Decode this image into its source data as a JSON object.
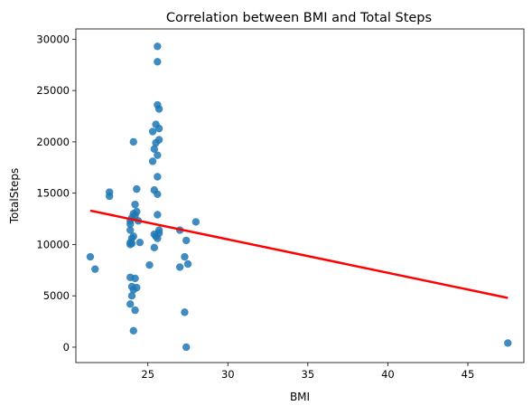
{
  "chart_data": {
    "type": "scatter",
    "title": "Correlation between BMI and Total Steps",
    "xlabel": "BMI",
    "ylabel": "TotalSteps",
    "xlim": [
      20.5,
      48.5
    ],
    "ylim": [
      -1500,
      31000
    ],
    "xticks": [
      25,
      30,
      35,
      40,
      45
    ],
    "yticks": [
      0,
      5000,
      10000,
      15000,
      20000,
      25000,
      30000
    ],
    "grid": false,
    "point_color": "#1f77b4",
    "line_color": "#ff0000",
    "points": [
      {
        "x": 21.4,
        "y": 8800
      },
      {
        "x": 21.7,
        "y": 7600
      },
      {
        "x": 22.6,
        "y": 15100
      },
      {
        "x": 22.6,
        "y": 14700
      },
      {
        "x": 23.9,
        "y": 12300
      },
      {
        "x": 23.9,
        "y": 12000
      },
      {
        "x": 23.9,
        "y": 11400
      },
      {
        "x": 23.9,
        "y": 10200
      },
      {
        "x": 23.9,
        "y": 10000
      },
      {
        "x": 23.9,
        "y": 6800
      },
      {
        "x": 23.9,
        "y": 4200
      },
      {
        "x": 24.0,
        "y": 12600
      },
      {
        "x": 24.0,
        "y": 10600
      },
      {
        "x": 24.0,
        "y": 10100
      },
      {
        "x": 24.0,
        "y": 5900
      },
      {
        "x": 24.0,
        "y": 5000
      },
      {
        "x": 24.1,
        "y": 20000
      },
      {
        "x": 24.1,
        "y": 13000
      },
      {
        "x": 24.1,
        "y": 10800
      },
      {
        "x": 24.1,
        "y": 5600
      },
      {
        "x": 24.1,
        "y": 1600
      },
      {
        "x": 24.2,
        "y": 13900
      },
      {
        "x": 24.2,
        "y": 12800
      },
      {
        "x": 24.2,
        "y": 6700
      },
      {
        "x": 24.2,
        "y": 3600
      },
      {
        "x": 24.3,
        "y": 15400
      },
      {
        "x": 24.3,
        "y": 13200
      },
      {
        "x": 24.3,
        "y": 5800
      },
      {
        "x": 24.4,
        "y": 12300
      },
      {
        "x": 24.5,
        "y": 10200
      },
      {
        "x": 25.1,
        "y": 8000
      },
      {
        "x": 25.3,
        "y": 21000
      },
      {
        "x": 25.3,
        "y": 18100
      },
      {
        "x": 25.4,
        "y": 19300
      },
      {
        "x": 25.4,
        "y": 15300
      },
      {
        "x": 25.4,
        "y": 11000
      },
      {
        "x": 25.4,
        "y": 9700
      },
      {
        "x": 25.5,
        "y": 21700
      },
      {
        "x": 25.5,
        "y": 19900
      },
      {
        "x": 25.5,
        "y": 10800
      },
      {
        "x": 25.6,
        "y": 29300
      },
      {
        "x": 25.6,
        "y": 27800
      },
      {
        "x": 25.6,
        "y": 23600
      },
      {
        "x": 25.6,
        "y": 18700
      },
      {
        "x": 25.6,
        "y": 16600
      },
      {
        "x": 25.6,
        "y": 14900
      },
      {
        "x": 25.6,
        "y": 12900
      },
      {
        "x": 25.6,
        "y": 10600
      },
      {
        "x": 25.7,
        "y": 23200
      },
      {
        "x": 25.7,
        "y": 21300
      },
      {
        "x": 25.7,
        "y": 20200
      },
      {
        "x": 25.7,
        "y": 11400
      },
      {
        "x": 25.7,
        "y": 11100
      },
      {
        "x": 27.0,
        "y": 11400
      },
      {
        "x": 27.0,
        "y": 7800
      },
      {
        "x": 27.3,
        "y": 8800
      },
      {
        "x": 27.3,
        "y": 3400
      },
      {
        "x": 27.4,
        "y": 10400
      },
      {
        "x": 27.4,
        "y": 0
      },
      {
        "x": 27.5,
        "y": 8100
      },
      {
        "x": 28.0,
        "y": 12200
      },
      {
        "x": 47.5,
        "y": 400
      }
    ],
    "regression": {
      "x": [
        21.4,
        47.5
      ],
      "y": [
        13300,
        4800
      ]
    }
  }
}
